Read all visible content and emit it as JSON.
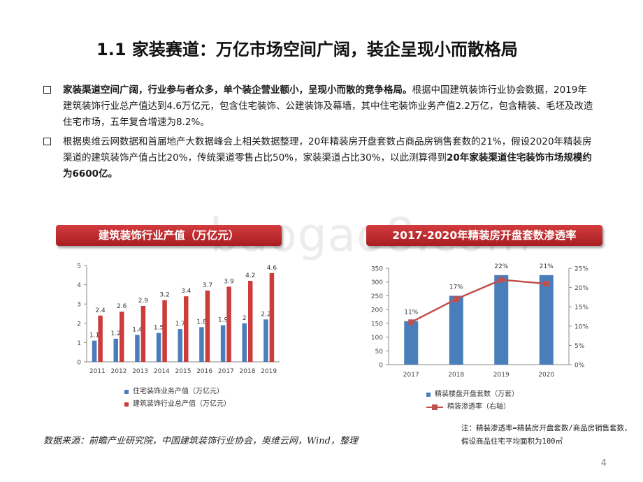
{
  "title": "1.1 家装赛道：万亿市场空间广阔，装企呈现小而散格局",
  "bullets": [
    {
      "bold": "家装渠道空间广阔，行业参与者众多，单个装企营业额小，呈现小而散的竞争格局。",
      "text": "根据中国建筑装饰行业协会数据，2019年建筑装饰行业总产值达到4.6万亿元，包含住宅装饰、公建装饰及幕墙，其中住宅装饰业务产值2.2万亿，包含精装、毛坯及改造住宅市场，五年复合增速为8.2%。"
    },
    {
      "text": "根据奥维云网数据和首届地产大数据峰会上相关数据整理，20年精装房开盘套数占商品房销售套数的21%，假设2020年精装房渠道的建筑装饰产值占比20%，传统渠道零售占比50%，家装渠道占比30%，以此测算得到",
      "bold": "20年家装渠道住宅装饰市场规模约为6600亿。"
    }
  ],
  "watermark": "baogao8.com",
  "chart1_title": "建筑装饰行业产值（万亿元）",
  "chart2_title": "2017-2020年精装房开盘套数渗透率",
  "chart_data": [
    {
      "type": "bar",
      "title": "建筑装饰行业产值（万亿元）",
      "categories": [
        "2011",
        "2012",
        "2013",
        "2014",
        "2015",
        "2016",
        "2017",
        "2018",
        "2019"
      ],
      "series": [
        {
          "name": "住宅装饰业务产值（万亿元）",
          "values": [
            1.1,
            1.2,
            1.4,
            1.5,
            1.7,
            1.8,
            1.9,
            2.0,
            2.2
          ],
          "color": "#4a7ebb"
        },
        {
          "name": "建筑装饰行业总产值（万亿元）",
          "values": [
            2.4,
            2.6,
            2.9,
            3.2,
            3.4,
            3.7,
            3.9,
            4.2,
            4.6
          ],
          "color": "#cd3b3b"
        }
      ],
      "ylim": [
        0,
        5
      ],
      "yticks": [
        "0",
        "1",
        "2",
        "3",
        "4",
        "5"
      ],
      "legend": "bottom"
    },
    {
      "type": "bar",
      "title": "2017-2020年精装房开盘套数渗透率",
      "categories": [
        "2017",
        "2018",
        "2019",
        "2020"
      ],
      "bar_series": {
        "name": "精装楼盘开盘套数（万套）",
        "values": [
          158,
          250,
          325,
          325
        ],
        "color": "#4a7ebb"
      },
      "line_series": {
        "name": "精装渗透率（右轴）",
        "values": [
          11,
          17,
          22,
          21
        ],
        "labels": [
          "11%",
          "17%",
          "22%",
          "21%"
        ],
        "color": "#c0504d"
      },
      "ylim": [
        0,
        350
      ],
      "yticks": [
        "0",
        "50",
        "100",
        "150",
        "200",
        "250",
        "300",
        "350"
      ],
      "y2lim": [
        0,
        25
      ],
      "y2ticks": [
        "0%",
        "5%",
        "10%",
        "15%",
        "20%",
        "25%"
      ],
      "legend": "bottom"
    }
  ],
  "source": "数据来源：前瞻产业研究院，中国建筑装饰行业协会，奥维云网，Wind，整理",
  "note": "注：精装渗透率=精装房开盘套数/商品房销售套数，假设商品住宅平均面积为100㎡",
  "page_number": "4"
}
